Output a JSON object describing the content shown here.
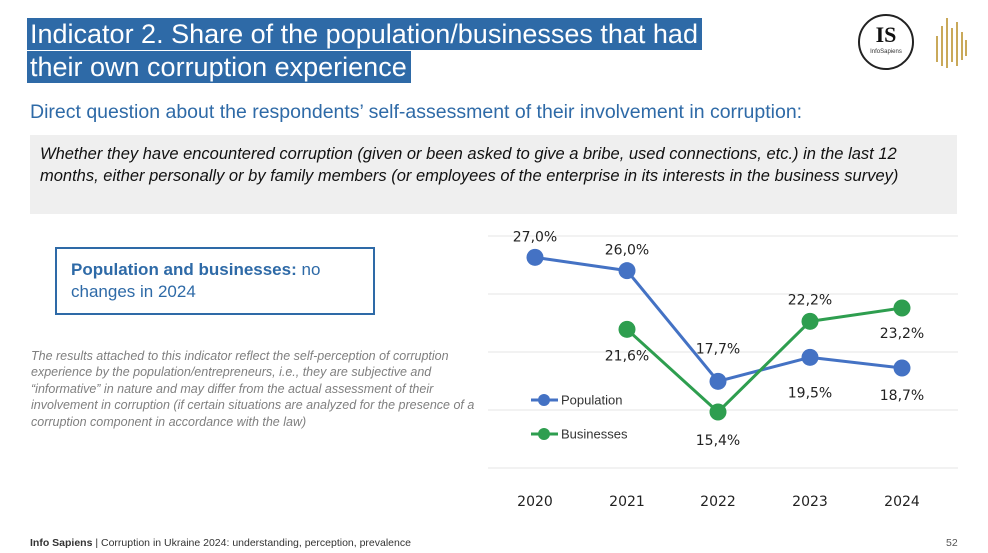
{
  "header": {
    "title_line1": "Indicator 2. Share of the population/businesses that had",
    "title_line2": "their own corruption experience",
    "logo_text": "IS",
    "logo_subtext": "InfoSapiens"
  },
  "subtitle": "Direct question about the respondents’ self-assessment of their involvement in corruption:",
  "question": "Whether they have encountered corruption (given or been asked to give a bribe, used connections, etc.) in the last 12 months, either personally or by family members (or employees of the enterprise in its interests in the business survey)",
  "callout": {
    "bold": "Population and businesses:",
    "rest": " no changes in 2024"
  },
  "note": "The results attached to this indicator reflect the self-perception of corruption experience by the population/entrepreneurs, i.e., they are subjective and “informative” in nature and may differ from the actual assessment of their involvement in corruption (if certain situations are analyzed for the presence of a corruption component in accordance with the law)",
  "footer": {
    "org": "Info Sapiens",
    "separator": " | ",
    "text": "Corruption in Ukraine 2024: understanding, perception, prevalence",
    "page": "52"
  },
  "chart_data": {
    "type": "line",
    "x": [
      "2020",
      "2021",
      "2022",
      "2023",
      "2024"
    ],
    "series": [
      {
        "name": "Population",
        "color": "#4472c4",
        "values": [
          27.0,
          26.0,
          17.7,
          19.5,
          18.7
        ],
        "labels": [
          "27,0%",
          "26,0%",
          "17,7%",
          "19,5%",
          "18,7%"
        ]
      },
      {
        "name": "Businesses",
        "color": "#2e9e4f",
        "values": [
          null,
          21.6,
          15.4,
          22.2,
          23.2
        ],
        "labels": [
          null,
          "21,6%",
          "15,4%",
          "22,2%",
          "23,2%"
        ]
      }
    ],
    "ylim": [
      0,
      28
    ],
    "grid": true,
    "legend_position": "left"
  }
}
